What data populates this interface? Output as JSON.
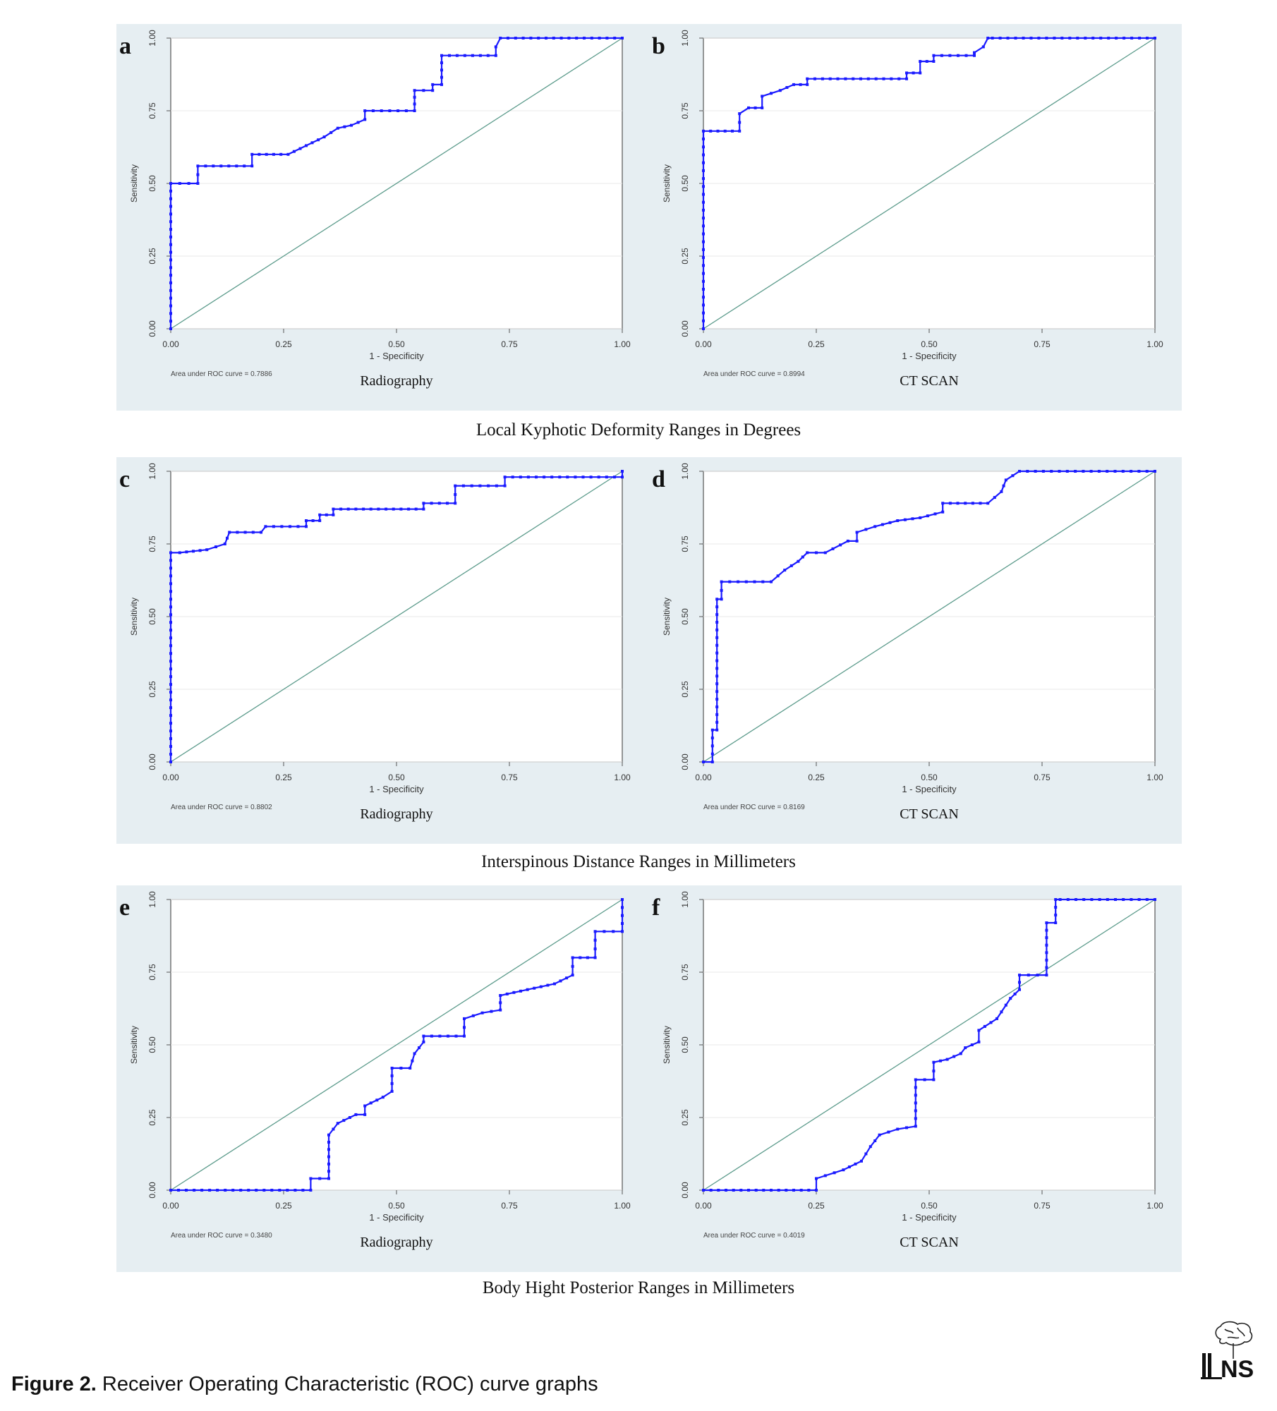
{
  "figure": {
    "caption_label": "Figure 2.",
    "caption_text": "Receiver Operating Characteristic (ROC) curve graphs",
    "logo_text": "NS"
  },
  "groups": [
    {
      "title": "Local Kyphotic Deformity Ranges in Degrees"
    },
    {
      "title": "Interspinous Distance Ranges in Millimeters"
    },
    {
      "title": "Body Hight Posterior Ranges in Millimeters"
    }
  ],
  "colors": {
    "curve": "#1a1aff",
    "reference": "#5a9a8a",
    "panel_bg": "#e6eef2",
    "plot_bg": "#ffffff",
    "grid": "#e8e8e8"
  },
  "chart_data": [
    {
      "type": "line",
      "panel_label": "a",
      "subtitle": "Radiography",
      "xlabel": "1 - Specificity",
      "ylabel": "Sensitivity",
      "auc_text": "Area under ROC curve = 0.7886",
      "xlim": [
        0,
        1
      ],
      "ylim": [
        0,
        1
      ],
      "xticks": [
        "0.00",
        "0.25",
        "0.50",
        "0.75",
        "1.00"
      ],
      "yticks": [
        "0.00",
        "0.25",
        "0.50",
        "0.75",
        "1.00"
      ],
      "grid": true,
      "reference_line": true,
      "series": [
        {
          "x": [
            0,
            0,
            0.06,
            0.06,
            0.18,
            0.18,
            0.26,
            0.3,
            0.34,
            0.37,
            0.4,
            0.43,
            0.43,
            0.54,
            0.54,
            0.58,
            0.58,
            0.6,
            0.6,
            0.72,
            0.72,
            0.73,
            1.0
          ],
          "y": [
            0,
            0.5,
            0.5,
            0.56,
            0.56,
            0.6,
            0.6,
            0.63,
            0.66,
            0.69,
            0.7,
            0.72,
            0.75,
            0.75,
            0.82,
            0.82,
            0.84,
            0.84,
            0.94,
            0.94,
            0.97,
            1.0,
            1.0
          ]
        }
      ]
    },
    {
      "type": "line",
      "panel_label": "b",
      "subtitle": "CT SCAN",
      "xlabel": "1 - Specificity",
      "ylabel": "Sensitivity",
      "auc_text": "Area under ROC curve = 0.8994",
      "xlim": [
        0,
        1
      ],
      "ylim": [
        0,
        1
      ],
      "xticks": [
        "0.00",
        "0.25",
        "0.50",
        "0.75",
        "1.00"
      ],
      "yticks": [
        "0.00",
        "0.25",
        "0.50",
        "0.75",
        "1.00"
      ],
      "grid": true,
      "reference_line": true,
      "series": [
        {
          "x": [
            0,
            0,
            0.08,
            0.08,
            0.1,
            0.13,
            0.13,
            0.17,
            0.2,
            0.23,
            0.23,
            0.45,
            0.45,
            0.48,
            0.48,
            0.51,
            0.51,
            0.6,
            0.6,
            0.62,
            0.63,
            0.64,
            1.0
          ],
          "y": [
            0,
            0.68,
            0.68,
            0.74,
            0.76,
            0.76,
            0.8,
            0.82,
            0.84,
            0.84,
            0.86,
            0.86,
            0.88,
            0.88,
            0.92,
            0.92,
            0.94,
            0.94,
            0.95,
            0.97,
            1.0,
            1.0,
            1.0
          ]
        }
      ]
    },
    {
      "type": "line",
      "panel_label": "c",
      "subtitle": "Radiography",
      "xlabel": "1 - Specificity",
      "ylabel": "Sensitivity",
      "auc_text": "Area under ROC curve = 0.8802",
      "xlim": [
        0,
        1
      ],
      "ylim": [
        0,
        1
      ],
      "xticks": [
        "0.00",
        "0.25",
        "0.50",
        "0.75",
        "1.00"
      ],
      "yticks": [
        "0.00",
        "0.25",
        "0.50",
        "0.75",
        "1.00"
      ],
      "grid": true,
      "reference_line": true,
      "series": [
        {
          "x": [
            0,
            0,
            0.02,
            0.08,
            0.12,
            0.13,
            0.2,
            0.21,
            0.3,
            0.3,
            0.33,
            0.33,
            0.36,
            0.36,
            0.56,
            0.56,
            0.63,
            0.63,
            0.74,
            0.74,
            1.0,
            1.0
          ],
          "y": [
            0,
            0.72,
            0.72,
            0.73,
            0.75,
            0.79,
            0.79,
            0.81,
            0.81,
            0.83,
            0.83,
            0.85,
            0.85,
            0.87,
            0.87,
            0.89,
            0.89,
            0.95,
            0.95,
            0.98,
            0.98,
            1.0
          ]
        }
      ]
    },
    {
      "type": "line",
      "panel_label": "d",
      "subtitle": "CT SCAN",
      "xlabel": "1 - Specificity",
      "ylabel": "Sensitivity",
      "auc_text": "Area under ROC curve = 0.8169",
      "xlim": [
        0,
        1
      ],
      "ylim": [
        0,
        1
      ],
      "xticks": [
        "0.00",
        "0.25",
        "0.50",
        "0.75",
        "1.00"
      ],
      "yticks": [
        "0.00",
        "0.25",
        "0.50",
        "0.75",
        "1.00"
      ],
      "grid": true,
      "reference_line": true,
      "series": [
        {
          "x": [
            0,
            0.02,
            0.02,
            0.03,
            0.03,
            0.04,
            0.04,
            0.15,
            0.18,
            0.21,
            0.23,
            0.27,
            0.32,
            0.34,
            0.34,
            0.38,
            0.43,
            0.48,
            0.53,
            0.53,
            0.63,
            0.66,
            0.67,
            0.7,
            1.0
          ],
          "y": [
            0,
            0,
            0.11,
            0.11,
            0.56,
            0.56,
            0.62,
            0.62,
            0.66,
            0.69,
            0.72,
            0.72,
            0.76,
            0.76,
            0.79,
            0.81,
            0.83,
            0.84,
            0.86,
            0.89,
            0.89,
            0.93,
            0.97,
            1.0,
            1.0
          ]
        }
      ]
    },
    {
      "type": "line",
      "panel_label": "e",
      "subtitle": "Radiography",
      "xlabel": "1 - Specificity",
      "ylabel": "Sensitivity",
      "auc_text": "Area under ROC curve = 0.3480",
      "xlim": [
        0,
        1
      ],
      "ylim": [
        0,
        1
      ],
      "xticks": [
        "0.00",
        "0.25",
        "0.50",
        "0.75",
        "1.00"
      ],
      "yticks": [
        "0.00",
        "0.25",
        "0.50",
        "0.75",
        "1.00"
      ],
      "grid": true,
      "reference_line": true,
      "series": [
        {
          "x": [
            0,
            0.31,
            0.31,
            0.35,
            0.35,
            0.37,
            0.41,
            0.43,
            0.43,
            0.47,
            0.49,
            0.49,
            0.53,
            0.54,
            0.56,
            0.56,
            0.65,
            0.65,
            0.69,
            0.73,
            0.73,
            0.79,
            0.85,
            0.89,
            0.89,
            0.94,
            0.94,
            1.0,
            1.0
          ],
          "y": [
            0,
            0,
            0.04,
            0.04,
            0.19,
            0.23,
            0.26,
            0.26,
            0.29,
            0.32,
            0.34,
            0.42,
            0.42,
            0.47,
            0.51,
            0.53,
            0.53,
            0.59,
            0.61,
            0.62,
            0.67,
            0.69,
            0.71,
            0.74,
            0.8,
            0.8,
            0.89,
            0.89,
            1.0
          ]
        }
      ]
    },
    {
      "type": "line",
      "panel_label": "f",
      "subtitle": "CT SCAN",
      "xlabel": "1 - Specificity",
      "ylabel": "Sensitivity",
      "auc_text": "Area under ROC curve = 0.4019",
      "xlim": [
        0,
        1
      ],
      "ylim": [
        0,
        1
      ],
      "xticks": [
        "0.00",
        "0.25",
        "0.50",
        "0.75",
        "1.00"
      ],
      "yticks": [
        "0.00",
        "0.25",
        "0.50",
        "0.75",
        "1.00"
      ],
      "grid": true,
      "reference_line": true,
      "series": [
        {
          "x": [
            0,
            0.25,
            0.25,
            0.29,
            0.31,
            0.35,
            0.37,
            0.39,
            0.43,
            0.47,
            0.47,
            0.51,
            0.51,
            0.54,
            0.57,
            0.58,
            0.61,
            0.61,
            0.65,
            0.68,
            0.7,
            0.7,
            0.76,
            0.76,
            0.78,
            0.78,
            0.79,
            1.0
          ],
          "y": [
            0,
            0,
            0.04,
            0.06,
            0.07,
            0.1,
            0.15,
            0.19,
            0.21,
            0.22,
            0.38,
            0.38,
            0.44,
            0.45,
            0.47,
            0.49,
            0.51,
            0.55,
            0.59,
            0.66,
            0.69,
            0.74,
            0.74,
            0.92,
            0.92,
            1.0,
            1.0,
            1.0
          ]
        }
      ]
    }
  ]
}
